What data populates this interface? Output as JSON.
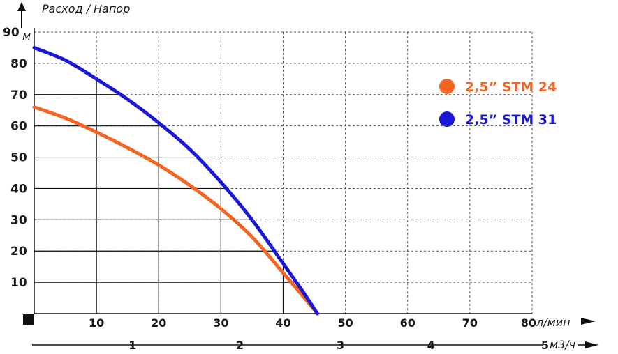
{
  "chart_data": {
    "type": "line",
    "title": "",
    "ylabel": "Расход / Напор",
    "y_unit": "м",
    "x_unit": "л/мин",
    "x2_unit": "м3/ч",
    "xlim": [
      0,
      80
    ],
    "ylim": [
      0,
      90
    ],
    "y_ticks": [
      "10",
      "20",
      "30",
      "40",
      "50",
      "60",
      "70",
      "80",
      "90"
    ],
    "x_ticks": [
      "10",
      "20",
      "30",
      "40",
      "50",
      "60",
      "70",
      "80"
    ],
    "x2_ticks": [
      "1",
      "2",
      "3",
      "4",
      "5"
    ],
    "x2_tick_values": [
      1,
      2,
      3,
      4,
      5
    ],
    "grid": true,
    "legend_position": "right",
    "series": [
      {
        "name": "2,5” STM 24",
        "color": "#f26522",
        "x": [
          0,
          5,
          10,
          15,
          20,
          25,
          30,
          35,
          40,
          43,
          45.5
        ],
        "y": [
          66,
          62.5,
          58,
          53,
          47.5,
          41,
          33.5,
          24.5,
          13,
          6,
          0
        ]
      },
      {
        "name": "2,5” STM 31",
        "color": "#1a1ad6",
        "x": [
          0,
          5,
          10,
          15,
          20,
          25,
          30,
          35,
          40,
          43,
          45.5
        ],
        "y": [
          85,
          81,
          75,
          68.5,
          61,
          52.5,
          42,
          30,
          16,
          7.5,
          0
        ]
      }
    ]
  }
}
